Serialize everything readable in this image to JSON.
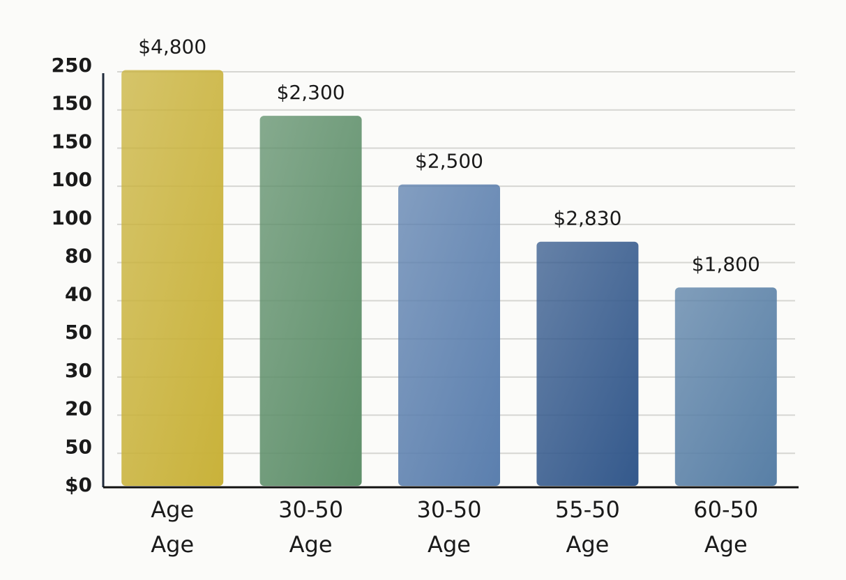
{
  "chart_data": {
    "type": "bar",
    "categories": [
      "Age",
      "30-50",
      "30-50",
      "55-50",
      "60-50"
    ],
    "category_sublabels": [
      "Age",
      "Age",
      "Age",
      "Age",
      "Age"
    ],
    "values": [
      10.9,
      9.7,
      7.9,
      6.4,
      5.2
    ],
    "annotations": [
      "$4,800",
      "$2,300",
      "$2,500",
      "$2,830",
      "$1,800"
    ],
    "colors": [
      "#c9b23a",
      "#5e8f6a",
      "#5b7fae",
      "#34598c",
      "#587fa6"
    ],
    "ylim": [
      0,
      11
    ],
    "yticks": [
      {
        "value": 0,
        "label": "$0"
      },
      {
        "value": 1,
        "label": "50"
      },
      {
        "value": 2,
        "label": "20"
      },
      {
        "value": 3,
        "label": "30"
      },
      {
        "value": 4,
        "label": "50"
      },
      {
        "value": 5,
        "label": "40"
      },
      {
        "value": 6,
        "label": "80"
      },
      {
        "value": 7,
        "label": "100"
      },
      {
        "value": 8,
        "label": "100"
      },
      {
        "value": 9,
        "label": "150"
      },
      {
        "value": 10,
        "label": "150"
      },
      {
        "value": 11,
        "label": "250"
      }
    ],
    "grid": true
  }
}
